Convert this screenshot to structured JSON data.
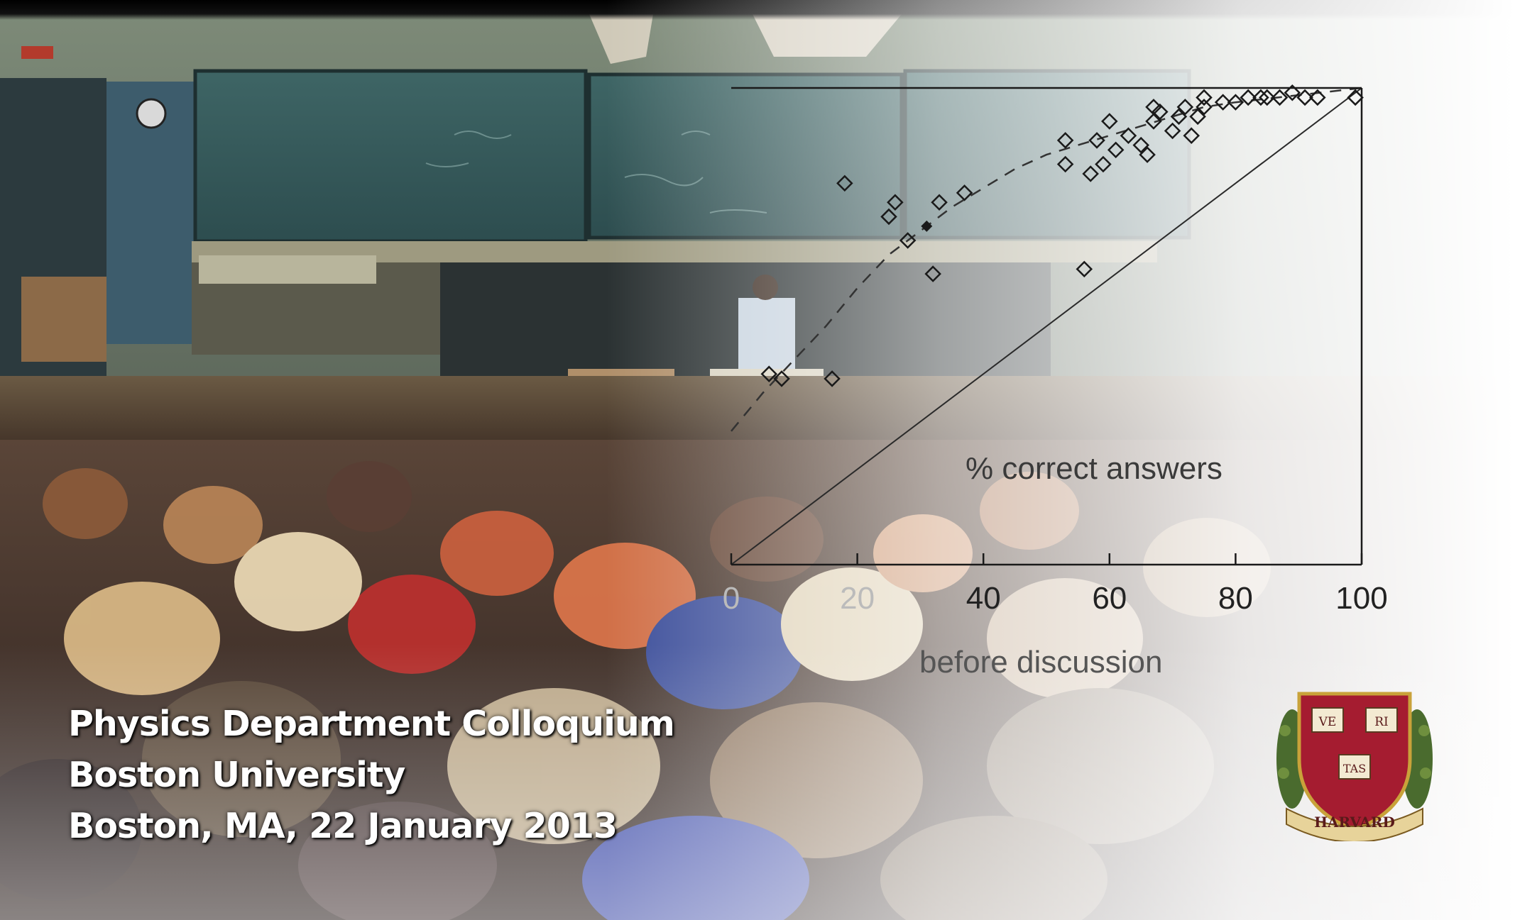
{
  "slide": {
    "lines": [
      "Physics Department Colloquium",
      "Boston University",
      "Boston, MA, 22 January 2013"
    ],
    "seal_text": [
      "VE",
      "RI",
      "TAS",
      "HARVARD"
    ]
  },
  "chart_data": {
    "type": "scatter",
    "title": "",
    "annotation": "% correct answers",
    "xlabel": "before discussion",
    "ylabel": "",
    "xlim": [
      0,
      100
    ],
    "ylim": [
      0,
      100
    ],
    "x_ticks": [
      "0",
      "20",
      "40",
      "60",
      "80",
      "100"
    ],
    "grid": false,
    "points": [
      [
        6,
        40
      ],
      [
        8,
        39
      ],
      [
        16,
        39
      ],
      [
        18,
        80
      ],
      [
        25,
        73
      ],
      [
        26,
        76
      ],
      [
        28,
        68
      ],
      [
        32,
        61
      ],
      [
        33,
        76
      ],
      [
        37,
        78
      ],
      [
        53,
        84
      ],
      [
        53,
        89
      ],
      [
        56,
        62
      ],
      [
        57,
        82
      ],
      [
        58,
        89
      ],
      [
        59,
        84
      ],
      [
        60,
        93
      ],
      [
        61,
        87
      ],
      [
        63,
        90
      ],
      [
        65,
        88
      ],
      [
        66,
        86
      ],
      [
        67,
        93
      ],
      [
        67,
        96
      ],
      [
        68,
        95
      ],
      [
        70,
        91
      ],
      [
        71,
        94
      ],
      [
        72,
        96
      ],
      [
        73,
        90
      ],
      [
        74,
        94
      ],
      [
        75,
        96
      ],
      [
        75,
        98
      ],
      [
        78,
        97
      ],
      [
        80,
        97
      ],
      [
        82,
        98
      ],
      [
        84,
        98
      ],
      [
        85,
        98
      ],
      [
        87,
        98
      ],
      [
        89,
        99
      ],
      [
        91,
        98
      ],
      [
        93,
        98
      ],
      [
        99,
        98
      ]
    ],
    "highlight_point": [
      31,
      71
    ],
    "reference_line": [
      [
        0,
        0
      ],
      [
        100,
        100
      ]
    ],
    "fit_curve": [
      [
        0,
        28
      ],
      [
        5,
        36
      ],
      [
        10,
        43
      ],
      [
        15,
        50
      ],
      [
        20,
        58
      ],
      [
        25,
        65
      ],
      [
        30,
        70
      ],
      [
        35,
        75
      ],
      [
        40,
        79
      ],
      [
        45,
        83
      ],
      [
        50,
        86
      ],
      [
        55,
        88
      ],
      [
        60,
        90
      ],
      [
        65,
        92
      ],
      [
        70,
        94
      ],
      [
        75,
        96
      ],
      [
        80,
        97
      ],
      [
        90,
        98.5
      ],
      [
        100,
        100
      ]
    ]
  }
}
